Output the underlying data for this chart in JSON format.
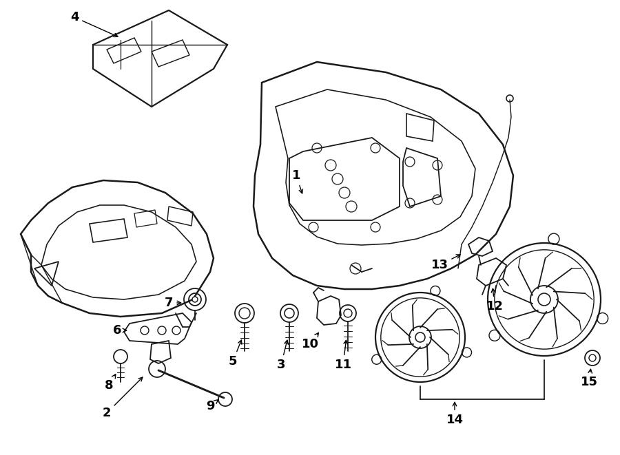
{
  "bg_color": "#ffffff",
  "line_color": "#1a1a1a",
  "lw": 1.3,
  "fig_w": 9.0,
  "fig_h": 6.61,
  "dpi": 100
}
